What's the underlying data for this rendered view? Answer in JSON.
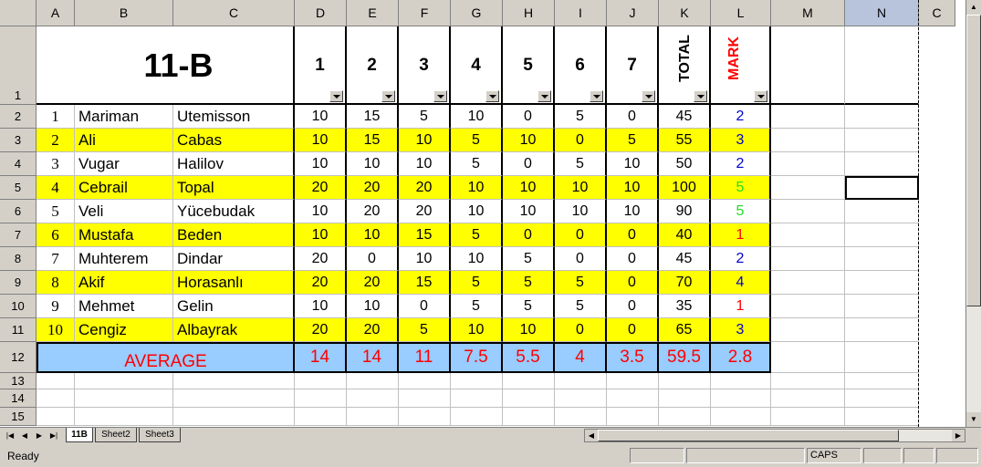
{
  "columns": [
    "A",
    "B",
    "C",
    "D",
    "E",
    "F",
    "G",
    "H",
    "I",
    "J",
    "K",
    "L",
    "M",
    "N",
    "C"
  ],
  "selected_column": "N",
  "rows": [
    "1",
    "2",
    "3",
    "4",
    "5",
    "6",
    "7",
    "8",
    "9",
    "10",
    "11",
    "12",
    "13",
    "14",
    "15"
  ],
  "title": "11-B",
  "task_headers": [
    "1",
    "2",
    "3",
    "4",
    "5",
    "6",
    "7"
  ],
  "total_header": "TOTAL",
  "mark_header": "MARK",
  "students": [
    {
      "no": "1",
      "first": "Mariman",
      "last": "Utemisson",
      "scores": [
        "10",
        "15",
        "5",
        "10",
        "0",
        "5",
        "0"
      ],
      "total": "45",
      "mark": "2",
      "mark_color": "blue",
      "highlight": false
    },
    {
      "no": "2",
      "first": "Ali",
      "last": "Cabas",
      "scores": [
        "10",
        "15",
        "10",
        "5",
        "10",
        "0",
        "5"
      ],
      "total": "55",
      "mark": "3",
      "mark_color": "blue",
      "highlight": true
    },
    {
      "no": "3",
      "first": "Vugar",
      "last": "Halilov",
      "scores": [
        "10",
        "10",
        "10",
        "5",
        "0",
        "5",
        "10"
      ],
      "total": "50",
      "mark": "2",
      "mark_color": "blue",
      "highlight": false
    },
    {
      "no": "4",
      "first": "Cebrail",
      "last": "Topal",
      "scores": [
        "20",
        "20",
        "20",
        "10",
        "10",
        "10",
        "10"
      ],
      "total": "100",
      "mark": "5",
      "mark_color": "green",
      "highlight": true
    },
    {
      "no": "5",
      "first": "Veli",
      "last": "Yücebudak",
      "scores": [
        "10",
        "20",
        "20",
        "10",
        "10",
        "10",
        "10"
      ],
      "total": "90",
      "mark": "5",
      "mark_color": "green",
      "highlight": false
    },
    {
      "no": "6",
      "first": "Mustafa",
      "last": "Beden",
      "scores": [
        "10",
        "10",
        "15",
        "5",
        "0",
        "0",
        "0"
      ],
      "total": "40",
      "mark": "1",
      "mark_color": "red",
      "highlight": true
    },
    {
      "no": "7",
      "first": "Muhterem",
      "last": "Dindar",
      "scores": [
        "20",
        "0",
        "10",
        "10",
        "5",
        "0",
        "0"
      ],
      "total": "45",
      "mark": "2",
      "mark_color": "blue",
      "highlight": false
    },
    {
      "no": "8",
      "first": "Akif",
      "last": "Horasanlı",
      "scores": [
        "20",
        "20",
        "15",
        "5",
        "5",
        "5",
        "0"
      ],
      "total": "70",
      "mark": "4",
      "mark_color": "blue",
      "highlight": true
    },
    {
      "no": "9",
      "first": "Mehmet",
      "last": "Gelin",
      "scores": [
        "10",
        "10",
        "0",
        "5",
        "5",
        "5",
        "0"
      ],
      "total": "35",
      "mark": "1",
      "mark_color": "red",
      "highlight": false
    },
    {
      "no": "10",
      "first": "Cengiz",
      "last": "Albayrak",
      "scores": [
        "20",
        "20",
        "5",
        "10",
        "10",
        "0",
        "0"
      ],
      "total": "65",
      "mark": "3",
      "mark_color": "blue",
      "highlight": true
    }
  ],
  "average": {
    "label": "AVERAGE",
    "values": [
      "14",
      "14",
      "11",
      "7.5",
      "5.5",
      "4",
      "3.5"
    ],
    "total": "59.5",
    "mark": "2.8"
  },
  "sheet_tabs": [
    "11B",
    "Sheet2",
    "Sheet3"
  ],
  "active_tab": "11B",
  "status": {
    "ready": "Ready",
    "caps": "CAPS"
  },
  "colors": {
    "highlight": "#ffff00",
    "average_bg": "#99ccff",
    "mark_red": "#ff0000",
    "mark_blue": "#0000cc",
    "mark_green": "#22dd22"
  }
}
